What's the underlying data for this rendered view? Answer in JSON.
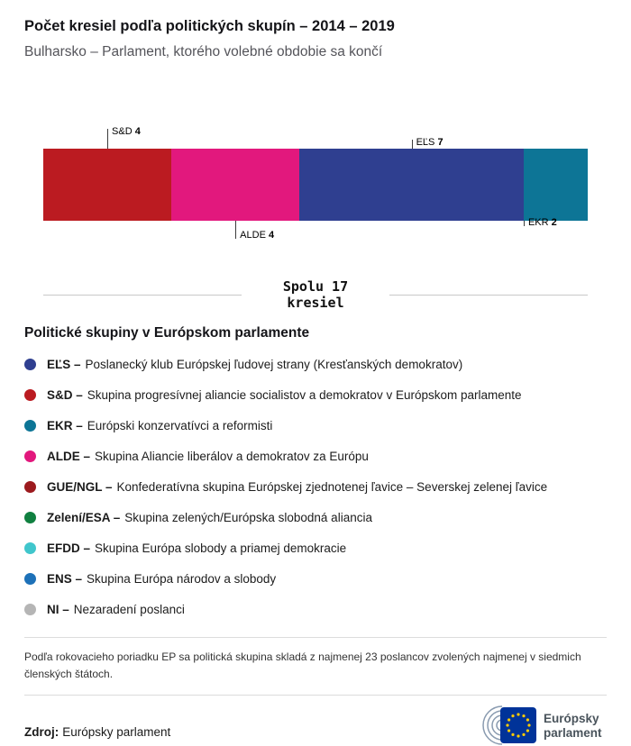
{
  "header": {
    "title": "Počet kresiel podľa politických skupín – 2014 – 2019",
    "subtitle": "Bulharsko – Parlament, ktorého volebné obdobie sa končí"
  },
  "chart_data": {
    "type": "bar",
    "stacked": true,
    "orientation": "horizontal",
    "total_seats": 17,
    "total_label": [
      "Spolu 17",
      "kresiel"
    ],
    "segments": [
      {
        "label": "S&D",
        "value": 4,
        "color": "#bb1b21",
        "label_position": "top",
        "tick_units": 2,
        "tick_len": 22
      },
      {
        "label": "ALDE",
        "value": 4,
        "color": "#e2187d",
        "label_position": "bottom",
        "tick_units": 6,
        "tick_len": 20
      },
      {
        "label": "EĽS",
        "value": 7,
        "color": "#2f3f90",
        "label_position": "top",
        "tick_units": 11.5,
        "tick_len": 10
      },
      {
        "label": "EKR",
        "value": 2,
        "color": "#0d7596",
        "label_position": "bottom",
        "tick_units": 15,
        "tick_len": 6
      }
    ]
  },
  "legend": {
    "title": "Politické skupiny v Európskom parlamente",
    "items": [
      {
        "id": "els",
        "abbr": "EĽS –",
        "desc": "Poslanecký klub Európskej ľudovej strany (Kresťanských demokratov)",
        "color": "#2f3f90"
      },
      {
        "id": "sd",
        "abbr": "S&D –",
        "desc": "Skupina progresívnej aliancie socialistov a demokratov v Európskom parlamente",
        "color": "#bb1b21"
      },
      {
        "id": "ekr",
        "abbr": "EKR –",
        "desc": "Európski konzervatívci a reformisti",
        "color": "#0d7596"
      },
      {
        "id": "alde",
        "abbr": "ALDE –",
        "desc": "Skupina Aliancie liberálov a demokratov za Európu",
        "color": "#e2187d"
      },
      {
        "id": "gue-ngl",
        "abbr": "GUE/NGL –",
        "desc": "Konfederatívna skupina Európskej zjednotenej ľavice – Severskej zelenej ľavice",
        "color": "#9c1a1e"
      },
      {
        "id": "zeleni-esa",
        "abbr": "Zelení/ESA –",
        "desc": "Skupina zelených/Európska slobodná aliancia",
        "color": "#108040"
      },
      {
        "id": "efdd",
        "abbr": "EFDD –",
        "desc": "Skupina Európa slobody a priamej demokracie",
        "color": "#40c6cc"
      },
      {
        "id": "ens",
        "abbr": "ENS –",
        "desc": "Skupina Európa národov a slobody",
        "color": "#1d71b8"
      },
      {
        "id": "ni",
        "abbr": "NI –",
        "desc": "Nezaradení poslanci",
        "color": "#b5b5b5"
      }
    ]
  },
  "footnote": "Podľa rokovacieho poriadku EP sa politická skupina skladá z najmenej 23 poslancov zvolených najmenej v siedmich členských štátoch.",
  "footer": {
    "source_label": "Zdroj:",
    "source_value": "Európsky parlament",
    "logo": {
      "line1": "Európsky",
      "line2": "parlament"
    }
  }
}
